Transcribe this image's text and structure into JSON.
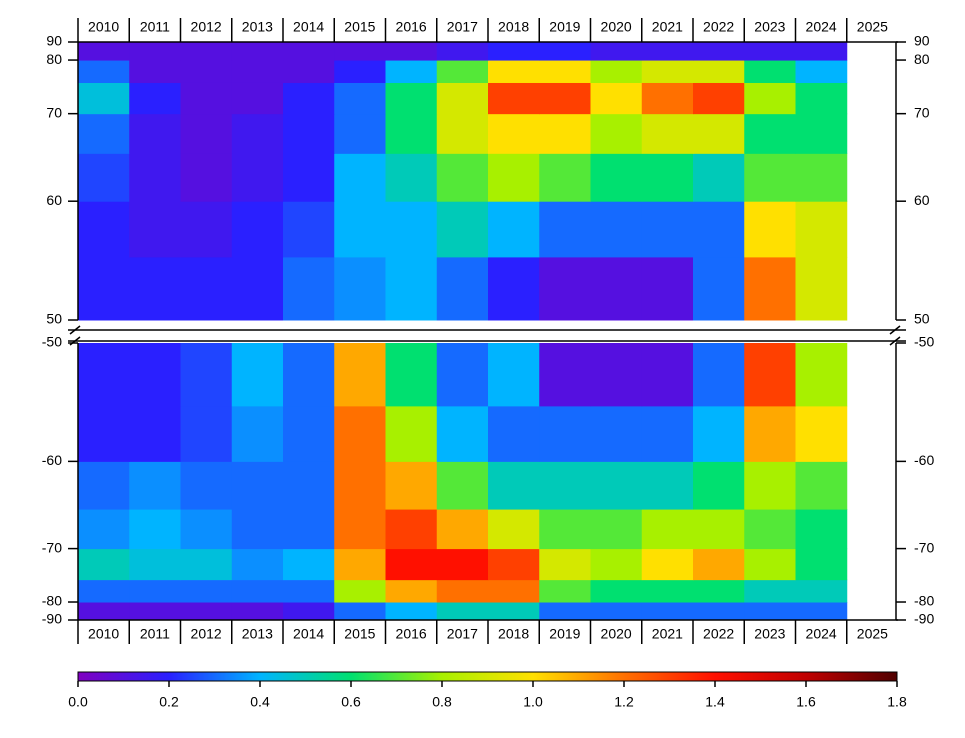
{
  "chart_data": [
    {
      "type": "heatmap",
      "categories": [
        "2010",
        "2011",
        "2012",
        "2013",
        "2014",
        "2015",
        "2016",
        "2017",
        "2018",
        "2019",
        "2020",
        "2021",
        "2022",
        "2023",
        "2024",
        "2025"
      ],
      "y_edges": [
        50,
        55,
        60,
        65,
        70,
        75,
        80,
        90
      ],
      "ylim": [
        50,
        90
      ],
      "yticks": [
        50,
        60,
        70,
        80,
        90
      ],
      "yscale": "sine",
      "xaxis_side": "top",
      "values": [
        [
          0.2,
          0.2,
          0.2,
          0.2,
          0.3,
          0.35,
          0.4,
          0.3,
          0.2,
          0.1,
          0.1,
          0.1,
          0.3,
          1.2,
          0.9,
          null
        ],
        [
          0.2,
          0.15,
          0.15,
          0.2,
          0.25,
          0.4,
          0.4,
          0.5,
          0.4,
          0.3,
          0.3,
          0.3,
          0.3,
          1.0,
          0.9,
          null
        ],
        [
          0.25,
          0.15,
          0.1,
          0.15,
          0.2,
          0.4,
          0.5,
          0.7,
          0.8,
          0.7,
          0.6,
          0.6,
          0.5,
          0.7,
          0.7,
          null
        ],
        [
          0.3,
          0.15,
          0.1,
          0.15,
          0.2,
          0.3,
          0.6,
          0.9,
          1.0,
          1.0,
          0.8,
          0.9,
          0.9,
          0.6,
          0.6,
          null
        ],
        [
          0.45,
          0.2,
          0.1,
          0.1,
          0.2,
          0.3,
          0.6,
          0.9,
          1.3,
          1.3,
          1.0,
          1.2,
          1.3,
          0.8,
          0.6,
          null
        ],
        [
          0.3,
          0.1,
          0.1,
          0.1,
          0.1,
          0.2,
          0.4,
          0.7,
          1.0,
          1.0,
          0.8,
          0.9,
          0.9,
          0.6,
          0.4,
          null
        ],
        [
          0.1,
          0.1,
          0.1,
          0.1,
          0.1,
          0.1,
          0.1,
          0.15,
          0.2,
          0.2,
          0.15,
          0.15,
          0.15,
          0.15,
          0.15,
          null
        ]
      ]
    },
    {
      "type": "heatmap",
      "categories": [
        "2010",
        "2011",
        "2012",
        "2013",
        "2014",
        "2015",
        "2016",
        "2017",
        "2018",
        "2019",
        "2020",
        "2021",
        "2022",
        "2023",
        "2024",
        "2025"
      ],
      "y_edges": [
        -90,
        -80,
        -75,
        -70,
        -65,
        -60,
        -55,
        -50
      ],
      "ylim": [
        -90,
        -50
      ],
      "yticks": [
        -90,
        -80,
        -70,
        -60,
        -50
      ],
      "yscale": "sine",
      "xaxis_side": "bottom",
      "values": [
        [
          0.1,
          0.1,
          0.1,
          0.1,
          0.15,
          0.3,
          0.4,
          0.5,
          0.5,
          0.3,
          0.3,
          0.3,
          0.3,
          0.3,
          0.3,
          null
        ],
        [
          0.3,
          0.3,
          0.3,
          0.3,
          0.3,
          0.8,
          1.1,
          1.2,
          1.2,
          0.7,
          0.6,
          0.6,
          0.6,
          0.5,
          0.5,
          null
        ],
        [
          0.5,
          0.45,
          0.45,
          0.35,
          0.4,
          1.1,
          1.4,
          1.4,
          1.3,
          0.9,
          0.8,
          1.0,
          1.1,
          0.8,
          0.6,
          null
        ],
        [
          0.35,
          0.4,
          0.35,
          0.3,
          0.3,
          1.2,
          1.3,
          1.1,
          0.9,
          0.7,
          0.7,
          0.8,
          0.8,
          0.7,
          0.6,
          null
        ],
        [
          0.3,
          0.35,
          0.3,
          0.3,
          0.3,
          1.2,
          1.1,
          0.7,
          0.5,
          0.5,
          0.5,
          0.5,
          0.6,
          0.8,
          0.7,
          null
        ],
        [
          0.2,
          0.2,
          0.25,
          0.35,
          0.3,
          1.2,
          0.8,
          0.4,
          0.3,
          0.3,
          0.3,
          0.3,
          0.4,
          1.1,
          1.0,
          null
        ],
        [
          0.2,
          0.2,
          0.25,
          0.4,
          0.3,
          1.1,
          0.6,
          0.3,
          0.4,
          0.1,
          0.1,
          0.1,
          0.3,
          1.3,
          0.8,
          null
        ]
      ]
    }
  ],
  "colorbar": {
    "clim": [
      0,
      1.8
    ],
    "colors": [
      "#8000c0",
      "#2a20ff",
      "#00b4ff",
      "#00e070",
      "#a8f000",
      "#ffe000",
      "#ff7000",
      "#ff1000",
      "#c00000",
      "#500000"
    ],
    "ticks": [
      {
        "value": 0,
        "label": "0.0"
      },
      {
        "value": 0.2,
        "label": "0.2"
      },
      {
        "value": 0.4,
        "label": "0.4"
      },
      {
        "value": 0.6,
        "label": "0.6"
      },
      {
        "value": 0.8,
        "label": "0.8"
      },
      {
        "value": 1,
        "label": "1.0"
      },
      {
        "value": 1.2,
        "label": "1.2"
      },
      {
        "value": 1.4,
        "label": "1.4"
      },
      {
        "value": 1.6,
        "label": "1.6"
      },
      {
        "value": 1.8,
        "label": "1.8"
      }
    ]
  }
}
